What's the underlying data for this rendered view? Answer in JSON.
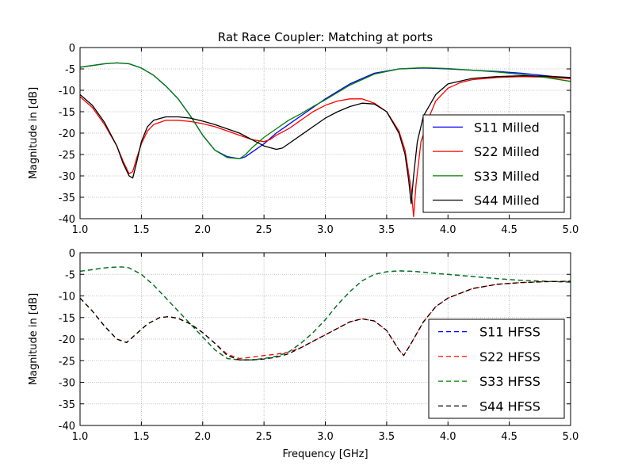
{
  "chart_data": [
    {
      "type": "line",
      "title": "Rat Race Coupler: Matching at ports",
      "xlabel": "",
      "ylabel": "Magnitude in [dB]",
      "xlim": [
        1.0,
        5.0
      ],
      "ylim": [
        -40,
        0
      ],
      "xticks": [
        "1.0",
        "1.5",
        "2.0",
        "2.5",
        "3.0",
        "3.5",
        "4.0",
        "4.5",
        "5.0"
      ],
      "yticks": [
        "0",
        "-5",
        "-10",
        "-15",
        "-20",
        "-25",
        "-30",
        "-35",
        "-40"
      ],
      "grid": true,
      "legend_position": "center-right",
      "series": [
        {
          "name": "S11 Milled",
          "color": "#0000ff",
          "style": "solid",
          "x": [
            1.0,
            1.1,
            1.2,
            1.3,
            1.4,
            1.5,
            1.6,
            1.7,
            1.8,
            1.9,
            2.0,
            2.1,
            2.2,
            2.3,
            2.35,
            2.4,
            2.5,
            2.6,
            2.7,
            2.8,
            2.9,
            3.0,
            3.2,
            3.4,
            3.6,
            3.8,
            4.0,
            4.2,
            4.4,
            4.6,
            4.8,
            5.0
          ],
          "y": [
            -4.6,
            -4.2,
            -3.8,
            -3.6,
            -3.8,
            -4.8,
            -6.5,
            -9.0,
            -12.0,
            -16.0,
            -20.5,
            -24.0,
            -25.5,
            -26.0,
            -25.5,
            -24.5,
            -22.5,
            -20.0,
            -18.0,
            -16.0,
            -14.0,
            -12.0,
            -8.5,
            -6.0,
            -5.0,
            -4.8,
            -5.0,
            -5.3,
            -5.6,
            -6.0,
            -6.6,
            -7.2
          ]
        },
        {
          "name": "S22 Milled",
          "color": "#ff0000",
          "style": "solid",
          "x": [
            1.0,
            1.1,
            1.2,
            1.3,
            1.35,
            1.4,
            1.43,
            1.46,
            1.5,
            1.55,
            1.6,
            1.7,
            1.8,
            1.9,
            2.0,
            2.1,
            2.2,
            2.3,
            2.4,
            2.5,
            2.55,
            2.6,
            2.7,
            2.8,
            2.9,
            3.0,
            3.1,
            3.2,
            3.3,
            3.4,
            3.5,
            3.6,
            3.65,
            3.7,
            3.72,
            3.74,
            3.78,
            3.85,
            3.9,
            4.0,
            4.1,
            4.2,
            4.4,
            4.6,
            4.8,
            5.0
          ],
          "y": [
            -11.5,
            -14.0,
            -18.0,
            -23.0,
            -26.5,
            -29.5,
            -29.0,
            -26.0,
            -22.5,
            -19.5,
            -18.0,
            -17.0,
            -17.0,
            -17.3,
            -17.8,
            -18.5,
            -19.5,
            -20.5,
            -21.5,
            -22.0,
            -21.5,
            -20.5,
            -19.0,
            -17.0,
            -15.0,
            -13.5,
            -12.5,
            -12.0,
            -12.0,
            -13.0,
            -15.0,
            -19.5,
            -24.0,
            -33.0,
            -39.5,
            -32.0,
            -22.0,
            -16.0,
            -12.5,
            -9.5,
            -8.2,
            -7.5,
            -7.0,
            -6.8,
            -6.9,
            -7.3
          ]
        },
        {
          "name": "S33 Milled",
          "color": "#008000",
          "style": "solid",
          "x": [
            1.0,
            1.1,
            1.2,
            1.3,
            1.4,
            1.5,
            1.6,
            1.7,
            1.8,
            1.9,
            2.0,
            2.1,
            2.2,
            2.3,
            2.35,
            2.4,
            2.5,
            2.6,
            2.7,
            2.8,
            2.9,
            3.0,
            3.2,
            3.4,
            3.6,
            3.8,
            4.0,
            4.2,
            4.4,
            4.6,
            4.8,
            5.0
          ],
          "y": [
            -4.6,
            -4.2,
            -3.8,
            -3.6,
            -3.8,
            -4.8,
            -6.5,
            -9.0,
            -12.0,
            -16.0,
            -20.5,
            -24.0,
            -25.7,
            -26.0,
            -25.0,
            -23.5,
            -21.0,
            -19.0,
            -17.0,
            -15.5,
            -13.8,
            -12.2,
            -8.8,
            -6.2,
            -5.0,
            -4.7,
            -4.9,
            -5.3,
            -5.7,
            -6.3,
            -7.0,
            -7.9
          ]
        },
        {
          "name": "S44 Milled",
          "color": "#000000",
          "style": "solid",
          "x": [
            1.0,
            1.1,
            1.2,
            1.3,
            1.35,
            1.4,
            1.43,
            1.46,
            1.5,
            1.55,
            1.6,
            1.7,
            1.8,
            1.9,
            2.0,
            2.1,
            2.2,
            2.3,
            2.4,
            2.5,
            2.6,
            2.65,
            2.7,
            2.8,
            2.9,
            3.0,
            3.1,
            3.2,
            3.3,
            3.4,
            3.5,
            3.6,
            3.65,
            3.68,
            3.7,
            3.72,
            3.75,
            3.8,
            3.9,
            4.0,
            4.2,
            4.4,
            4.6,
            4.8,
            5.0
          ],
          "y": [
            -11.0,
            -13.5,
            -17.5,
            -23.0,
            -27.0,
            -30.0,
            -30.5,
            -27.0,
            -22.0,
            -18.5,
            -17.0,
            -16.2,
            -16.2,
            -16.5,
            -17.2,
            -18.0,
            -19.0,
            -20.0,
            -21.5,
            -23.0,
            -23.8,
            -23.5,
            -22.5,
            -20.5,
            -18.5,
            -16.5,
            -15.0,
            -13.8,
            -13.0,
            -13.2,
            -15.0,
            -20.0,
            -25.0,
            -31.0,
            -36.5,
            -30.0,
            -22.0,
            -16.0,
            -11.0,
            -8.5,
            -7.2,
            -6.8,
            -6.6,
            -6.7,
            -7.0
          ]
        }
      ]
    },
    {
      "type": "line",
      "title": "",
      "xlabel": "Frequency [GHz]",
      "ylabel": "Magnitude in [dB]",
      "xlim": [
        1.0,
        5.0
      ],
      "ylim": [
        -40,
        0
      ],
      "xticks": [
        "1.0",
        "1.5",
        "2.0",
        "2.5",
        "3.0",
        "3.5",
        "4.0",
        "4.5",
        "5.0"
      ],
      "yticks": [
        "0",
        "-5",
        "-10",
        "-15",
        "-20",
        "-25",
        "-30",
        "-35",
        "-40"
      ],
      "grid": true,
      "legend_position": "lower-right",
      "series": [
        {
          "name": "S11 HFSS",
          "color": "#0000ff",
          "style": "dashed",
          "x": [
            1.0,
            1.1,
            1.2,
            1.3,
            1.35,
            1.4,
            1.5,
            1.6,
            1.7,
            1.8,
            1.9,
            2.0,
            2.1,
            2.2,
            2.3,
            2.4,
            2.5,
            2.6,
            2.7,
            2.8,
            2.9,
            3.0,
            3.1,
            3.2,
            3.3,
            3.4,
            3.5,
            3.6,
            3.7,
            3.8,
            3.9,
            4.0,
            4.2,
            4.4,
            4.6,
            4.8,
            5.0
          ],
          "y": [
            -4.3,
            -3.9,
            -3.5,
            -3.3,
            -3.3,
            -3.5,
            -5.0,
            -7.5,
            -10.5,
            -13.5,
            -16.5,
            -19.5,
            -22.5,
            -24.5,
            -24.8,
            -24.8,
            -24.5,
            -24.0,
            -23.0,
            -21.0,
            -18.5,
            -15.5,
            -12.0,
            -9.0,
            -6.5,
            -5.0,
            -4.4,
            -4.2,
            -4.3,
            -4.5,
            -4.8,
            -5.0,
            -5.5,
            -6.0,
            -6.4,
            -6.6,
            -6.8
          ]
        },
        {
          "name": "S22 HFSS",
          "color": "#ff0000",
          "style": "dashed",
          "x": [
            1.0,
            1.1,
            1.2,
            1.3,
            1.38,
            1.45,
            1.55,
            1.65,
            1.72,
            1.8,
            1.9,
            2.0,
            2.1,
            2.2,
            2.3,
            2.4,
            2.5,
            2.6,
            2.7,
            2.8,
            2.9,
            3.0,
            3.1,
            3.2,
            3.3,
            3.4,
            3.5,
            3.6,
            3.64,
            3.7,
            3.8,
            3.9,
            4.0,
            4.2,
            4.4,
            4.6,
            4.8,
            5.0
          ],
          "y": [
            -10.5,
            -13.5,
            -17.0,
            -20.0,
            -20.8,
            -19.0,
            -16.5,
            -15.0,
            -14.8,
            -15.2,
            -16.5,
            -18.5,
            -21.0,
            -23.5,
            -24.5,
            -24.2,
            -23.8,
            -23.5,
            -23.0,
            -22.0,
            -20.5,
            -19.0,
            -17.5,
            -16.0,
            -15.3,
            -15.8,
            -18.0,
            -22.5,
            -23.8,
            -21.0,
            -16.0,
            -12.5,
            -10.5,
            -8.3,
            -7.3,
            -6.9,
            -6.7,
            -6.6
          ]
        },
        {
          "name": "S33 HFSS",
          "color": "#008000",
          "style": "dashed",
          "x": [
            1.0,
            1.1,
            1.2,
            1.3,
            1.35,
            1.4,
            1.5,
            1.6,
            1.7,
            1.8,
            1.9,
            2.0,
            2.1,
            2.2,
            2.3,
            2.4,
            2.5,
            2.6,
            2.7,
            2.8,
            2.9,
            3.0,
            3.1,
            3.2,
            3.3,
            3.4,
            3.5,
            3.6,
            3.7,
            3.8,
            3.9,
            4.0,
            4.2,
            4.4,
            4.6,
            4.8,
            5.0
          ],
          "y": [
            -4.3,
            -3.9,
            -3.5,
            -3.3,
            -3.3,
            -3.5,
            -5.0,
            -7.5,
            -10.5,
            -13.5,
            -16.5,
            -19.5,
            -22.5,
            -24.5,
            -24.8,
            -24.8,
            -24.5,
            -24.0,
            -23.0,
            -21.0,
            -18.5,
            -15.5,
            -12.0,
            -9.0,
            -6.5,
            -5.0,
            -4.4,
            -4.2,
            -4.3,
            -4.5,
            -4.8,
            -5.0,
            -5.5,
            -6.0,
            -6.4,
            -6.6,
            -6.8
          ]
        },
        {
          "name": "S44 HFSS",
          "color": "#000000",
          "style": "dashed",
          "x": [
            1.0,
            1.1,
            1.2,
            1.3,
            1.38,
            1.45,
            1.55,
            1.65,
            1.72,
            1.8,
            1.9,
            2.0,
            2.1,
            2.2,
            2.3,
            2.4,
            2.5,
            2.6,
            2.7,
            2.8,
            2.9,
            3.0,
            3.1,
            3.2,
            3.3,
            3.4,
            3.5,
            3.6,
            3.64,
            3.7,
            3.8,
            3.9,
            4.0,
            4.2,
            4.4,
            4.6,
            4.8,
            5.0
          ],
          "y": [
            -10.5,
            -13.5,
            -17.0,
            -20.0,
            -20.8,
            -19.0,
            -16.5,
            -15.0,
            -14.8,
            -15.2,
            -16.5,
            -18.5,
            -21.0,
            -23.8,
            -24.8,
            -24.8,
            -24.6,
            -24.2,
            -23.4,
            -22.0,
            -20.5,
            -19.0,
            -17.5,
            -16.0,
            -15.3,
            -15.8,
            -18.0,
            -22.5,
            -23.8,
            -21.0,
            -16.0,
            -12.5,
            -10.5,
            -8.3,
            -7.3,
            -6.9,
            -6.7,
            -6.6
          ]
        }
      ]
    }
  ]
}
